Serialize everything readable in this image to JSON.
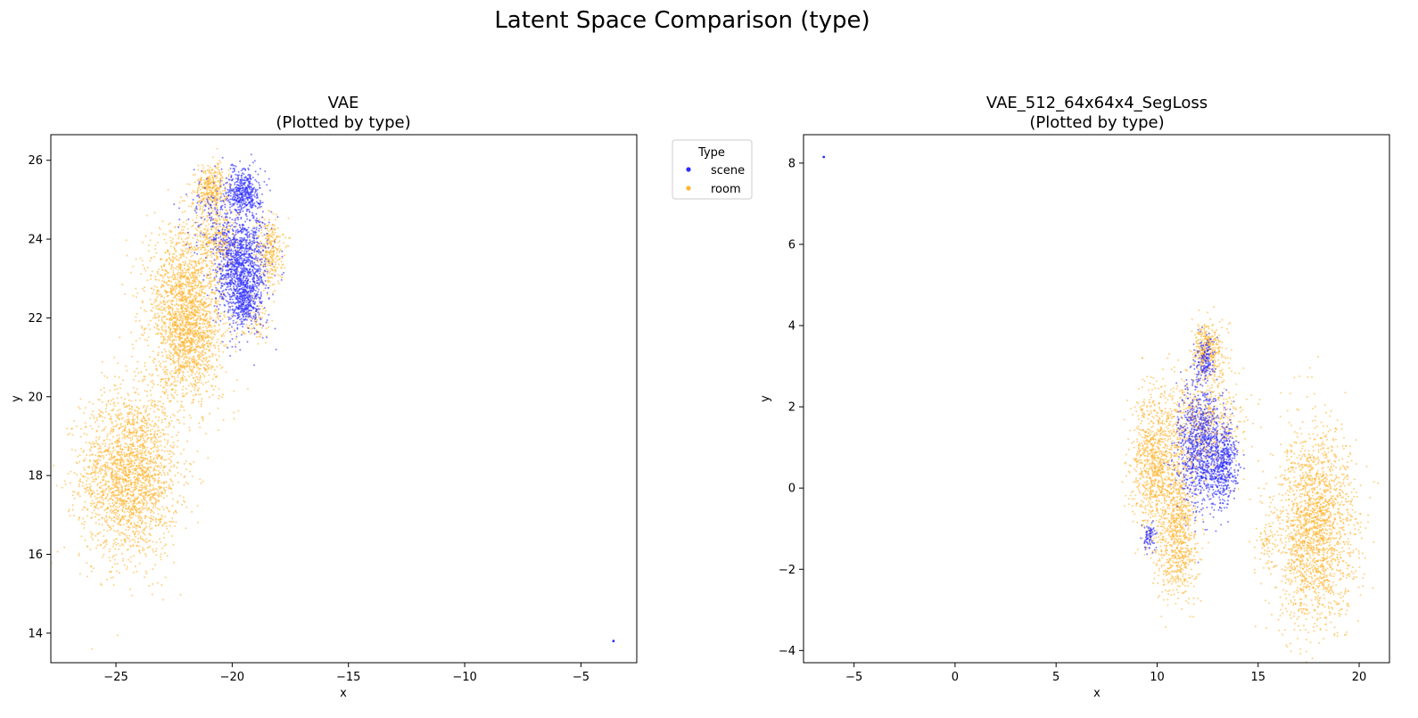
{
  "suptitle": "Latent Space Comparison (type)",
  "colors": {
    "scene": "#2b2bff",
    "room": "#ffb42e"
  },
  "legend": {
    "title": "Type",
    "placement": "outside-right of left panel",
    "entries": [
      {
        "label": "scene",
        "color": "#2b2bff"
      },
      {
        "label": "room",
        "color": "#ffb42e"
      }
    ]
  },
  "chart_data": [
    {
      "type": "scatter",
      "title": "VAE\n(Plotted by type)",
      "title_line1": "VAE",
      "title_line2": "(Plotted by type)",
      "xlabel": "x",
      "ylabel": "y",
      "xlim": [
        -27.8,
        -2.6
      ],
      "ylim": [
        13.25,
        26.65
      ],
      "xticks": [
        -25,
        -20,
        -15,
        -10,
        -5
      ],
      "yticks": [
        14,
        16,
        18,
        20,
        22,
        24,
        26
      ],
      "grid": false,
      "series": [
        {
          "name": "room",
          "color": "#ffb42e",
          "clusters": [
            {
              "cx": -24.4,
              "cy": 18.0,
              "sx": 1.05,
              "sy": 1.05,
              "n": 2200
            },
            {
              "cx": -22.0,
              "cy": 22.4,
              "sx": 0.85,
              "sy": 0.95,
              "n": 1600
            },
            {
              "cx": -21.8,
              "cy": 21.3,
              "sx": 0.6,
              "sy": 0.5,
              "n": 500
            },
            {
              "cx": -20.9,
              "cy": 25.3,
              "sx": 0.35,
              "sy": 0.3,
              "n": 350
            },
            {
              "cx": -20.6,
              "cy": 24.0,
              "sx": 0.45,
              "sy": 0.45,
              "n": 300
            },
            {
              "cx": -18.4,
              "cy": 23.7,
              "sx": 0.3,
              "sy": 0.45,
              "n": 300
            },
            {
              "cx": -19.0,
              "cy": 22.0,
              "sx": 0.3,
              "sy": 0.3,
              "n": 80
            },
            {
              "cx": -22.5,
              "cy": 20.2,
              "sx": 1.2,
              "sy": 0.45,
              "n": 150
            }
          ]
        },
        {
          "name": "scene",
          "color": "#2b2bff",
          "clusters": [
            {
              "cx": -19.6,
              "cy": 23.2,
              "sx": 0.55,
              "sy": 0.7,
              "n": 1300
            },
            {
              "cx": -19.5,
              "cy": 25.2,
              "sx": 0.35,
              "sy": 0.3,
              "n": 450
            },
            {
              "cx": -20.9,
              "cy": 24.7,
              "sx": 0.6,
              "sy": 0.5,
              "n": 120
            },
            {
              "cx": -19.4,
              "cy": 22.3,
              "sx": 0.3,
              "sy": 0.2,
              "n": 150
            }
          ],
          "points": [
            [
              -3.6,
              13.8
            ]
          ]
        }
      ]
    },
    {
      "type": "scatter",
      "title": "VAE_512_64x64x4_SegLoss\n(Plotted by type)",
      "title_line1": "VAE_512_64x64x4_SegLoss",
      "title_line2": "(Plotted by type)",
      "xlabel": "x",
      "ylabel": "y",
      "xlim": [
        -7.5,
        21.5
      ],
      "ylim": [
        -4.3,
        8.7
      ],
      "xticks": [
        -5,
        0,
        5,
        10,
        15,
        20
      ],
      "yticks": [
        -4,
        -2,
        0,
        2,
        4,
        6,
        8
      ],
      "grid": false,
      "series": [
        {
          "name": "room",
          "color": "#ffb42e",
          "clusters": [
            {
              "cx": 17.8,
              "cy": -1.0,
              "sx": 1.0,
              "sy": 1.2,
              "n": 2000
            },
            {
              "cx": 9.9,
              "cy": 0.6,
              "sx": 0.6,
              "sy": 0.9,
              "n": 900
            },
            {
              "cx": 11.0,
              "cy": -1.6,
              "sx": 0.55,
              "sy": 0.6,
              "n": 500
            },
            {
              "cx": 12.5,
              "cy": 3.4,
              "sx": 0.35,
              "sy": 0.35,
              "n": 350
            },
            {
              "cx": 12.2,
              "cy": 1.6,
              "sx": 1.0,
              "sy": 0.7,
              "n": 700
            },
            {
              "cx": 11.0,
              "cy": -0.3,
              "sx": 0.4,
              "sy": 0.6,
              "n": 300
            },
            {
              "cx": 15.4,
              "cy": -1.3,
              "sx": 0.3,
              "sy": 0.3,
              "n": 60
            }
          ]
        },
        {
          "name": "scene",
          "color": "#2b2bff",
          "clusters": [
            {
              "cx": 12.1,
              "cy": 1.0,
              "sx": 0.55,
              "sy": 0.8,
              "n": 900
            },
            {
              "cx": 13.3,
              "cy": 0.6,
              "sx": 0.35,
              "sy": 0.5,
              "n": 450
            },
            {
              "cx": 12.4,
              "cy": 3.2,
              "sx": 0.25,
              "sy": 0.3,
              "n": 150
            },
            {
              "cx": 9.6,
              "cy": -1.2,
              "sx": 0.15,
              "sy": 0.15,
              "n": 80
            }
          ],
          "points": [
            [
              -6.5,
              8.15
            ]
          ]
        }
      ]
    }
  ]
}
